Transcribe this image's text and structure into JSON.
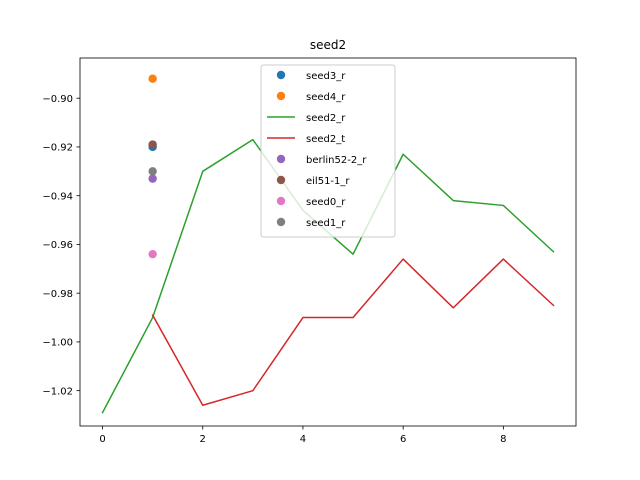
{
  "chart_data": {
    "type": "line",
    "title": "seed2",
    "xlabel": "",
    "ylabel": "",
    "xlim": [
      -0.45,
      9.45
    ],
    "ylim": [
      -1.0345,
      -0.8835
    ],
    "x_ticks": [
      0,
      2,
      4,
      6,
      8
    ],
    "y_ticks": [
      -1.02,
      -1.0,
      -0.98,
      -0.96,
      -0.94,
      -0.92,
      -0.9
    ],
    "x_tick_labels": [
      "0",
      "2",
      "4",
      "6",
      "8"
    ],
    "y_tick_labels": [
      "−1.02",
      "−1.00",
      "−0.98",
      "−0.96",
      "−0.94",
      "−0.92",
      "−0.90"
    ],
    "grid": false,
    "legend_position": "upper center",
    "series": [
      {
        "name": "seed3_r",
        "kind": "scatter",
        "color": "#1f77b4",
        "x": [
          1
        ],
        "y": [
          -0.92
        ]
      },
      {
        "name": "seed4_r",
        "kind": "scatter",
        "color": "#ff7f0e",
        "x": [
          1
        ],
        "y": [
          -0.892
        ]
      },
      {
        "name": "seed2_r",
        "kind": "line",
        "color": "#2ca02c",
        "x": [
          0,
          1,
          2,
          3,
          4,
          5,
          6,
          7,
          8,
          9
        ],
        "y": [
          -1.029,
          -0.99,
          -0.93,
          -0.917,
          -0.946,
          -0.964,
          -0.923,
          -0.942,
          -0.944,
          -0.963
        ]
      },
      {
        "name": "seed2_t",
        "kind": "line",
        "color": "#d62728",
        "x": [
          1,
          2,
          3,
          4,
          5,
          6,
          7,
          8,
          9
        ],
        "y": [
          -0.989,
          -1.026,
          -1.02,
          -0.99,
          -0.99,
          -0.966,
          -0.986,
          -0.966,
          -0.985
        ]
      },
      {
        "name": "berlin52-2_r",
        "kind": "scatter",
        "color": "#9467bd",
        "x": [
          1
        ],
        "y": [
          -0.933
        ]
      },
      {
        "name": "eil51-1_r",
        "kind": "scatter",
        "color": "#8c564b",
        "x": [
          1
        ],
        "y": [
          -0.919
        ]
      },
      {
        "name": "seed0_r",
        "kind": "scatter",
        "color": "#e377c2",
        "x": [
          1
        ],
        "y": [
          -0.964
        ]
      },
      {
        "name": "seed1_r",
        "kind": "scatter",
        "color": "#7f7f7f",
        "x": [
          1
        ],
        "y": [
          -0.93
        ]
      }
    ]
  }
}
